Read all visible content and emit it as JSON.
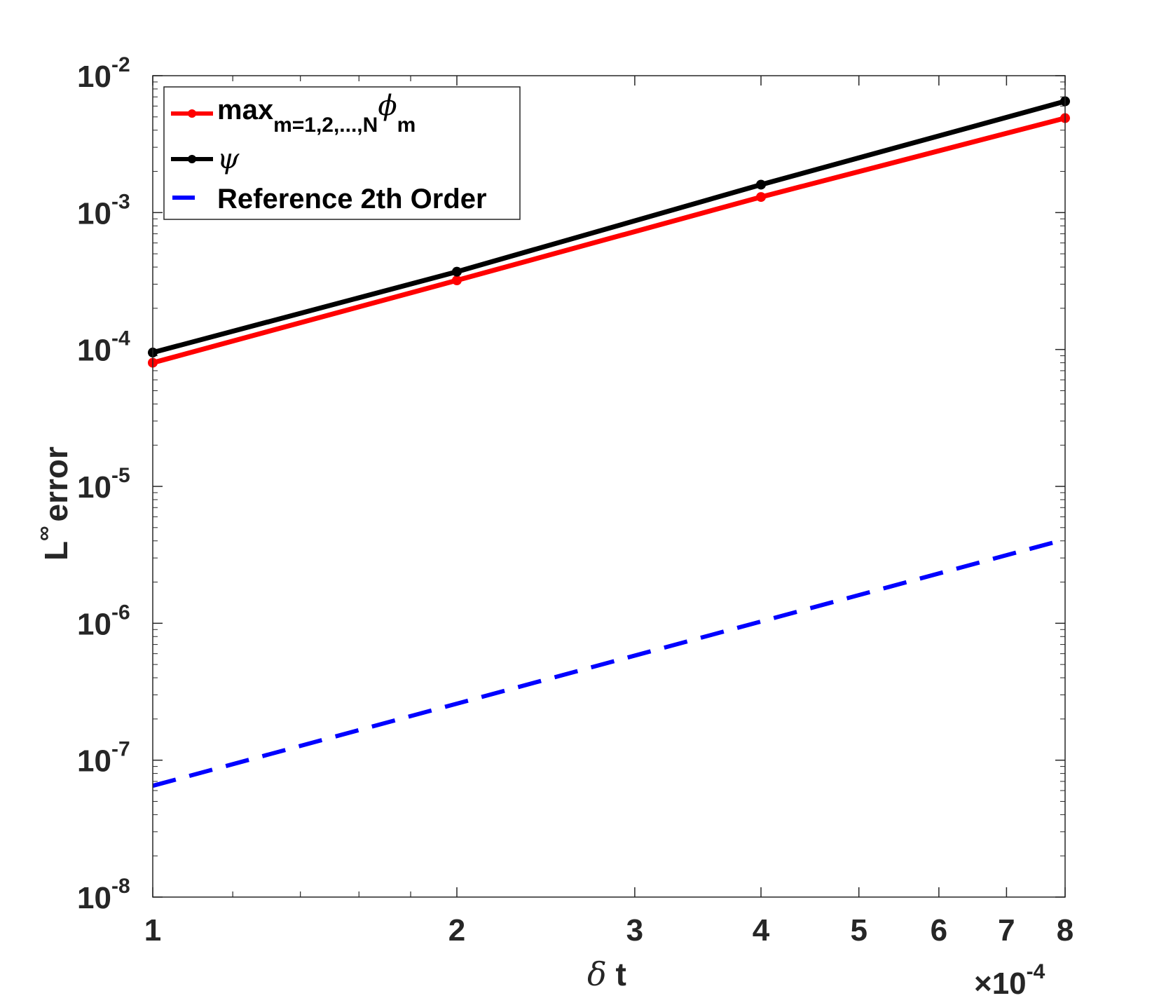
{
  "chart_data": {
    "type": "line",
    "xscale": "log",
    "yscale": "log",
    "xlim": [
      0.0001,
      0.0008
    ],
    "ylim": [
      1e-08,
      0.01
    ],
    "xticks": [
      0.0001,
      0.0002,
      0.0003,
      0.0004,
      0.0005,
      0.0006,
      0.0007,
      0.0008
    ],
    "xtick_labels": [
      "1",
      "2",
      "3",
      "4",
      "5",
      "6",
      "7",
      "8"
    ],
    "x_multiplier": "×10",
    "x_multiplier_exp": "-4",
    "yticks": [
      1e-08,
      1e-07,
      1e-06,
      1e-05,
      0.0001,
      0.001,
      0.01
    ],
    "ytick_bases": [
      "10",
      "10",
      "10",
      "10",
      "10",
      "10",
      "10"
    ],
    "ytick_exps": [
      "-8",
      "-7",
      "-6",
      "-5",
      "-4",
      "-3",
      "-2"
    ],
    "xlabel_greek": "δ",
    "xlabel_rest": " t",
    "ylabel_base": "L",
    "ylabel_sup": "∞",
    "ylabel_rest": "error",
    "grid": false,
    "legend_position": "top-left",
    "series": [
      {
        "label_main": "max",
        "label_sub": "m=1,2,...,N",
        "label_greek": "ϕ",
        "label_greek_sub": "m",
        "color": "#ff0000",
        "style": "solid-dot",
        "x": [
          0.0001,
          0.0002,
          0.0004,
          0.0008
        ],
        "y": [
          8e-05,
          0.00032,
          0.0013,
          0.0049
        ]
      },
      {
        "label_greek": "ψ",
        "color": "#000000",
        "style": "solid-dot",
        "x": [
          0.0001,
          0.0002,
          0.0004,
          0.0008
        ],
        "y": [
          9.5e-05,
          0.00037,
          0.0016,
          0.0065
        ]
      },
      {
        "label_main": "Reference 2th Order",
        "color": "#0000ff",
        "style": "dashed",
        "x": [
          0.0001,
          0.0008
        ],
        "y": [
          6.5e-08,
          4.1e-06
        ]
      }
    ]
  }
}
